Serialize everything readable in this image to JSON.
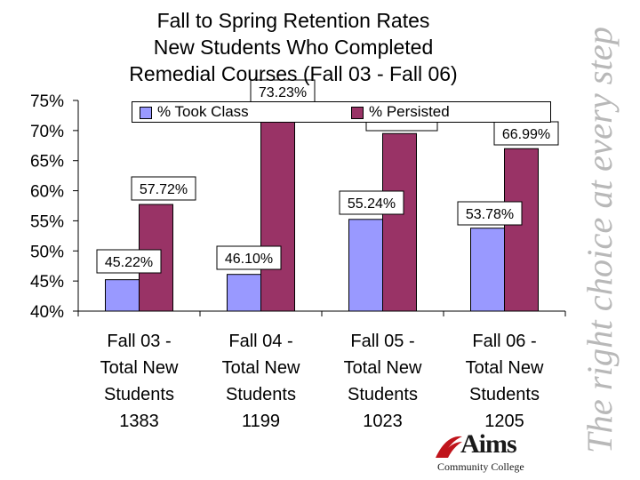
{
  "title_lines": [
    "Fall to Spring Retention Rates",
    "New Students Who Completed",
    "Remedial Courses (Fall 03 - Fall 06)"
  ],
  "tagline": "The right choice at every step",
  "logo": {
    "name": "Aims",
    "subtitle": "Community College"
  },
  "colors": {
    "took_class": "#9999ff",
    "persisted": "#993366",
    "axis": "#000000"
  },
  "chart_data": {
    "type": "bar",
    "categories": [
      [
        "Fall 03 -",
        "Total New",
        "Students",
        "1383"
      ],
      [
        "Fall 04 -",
        "Total New",
        "Students",
        "1199"
      ],
      [
        "Fall 05 -",
        "Total New",
        "Students",
        "1023"
      ],
      [
        "Fall 06 -",
        "Total New",
        "Students",
        "1205"
      ]
    ],
    "series": [
      {
        "name": "% Took Class",
        "values": [
          45.22,
          46.1,
          55.24,
          53.78
        ],
        "labels": [
          "45.22%",
          "46.10%",
          "55.24%",
          "53.78%"
        ]
      },
      {
        "name": "% Persisted",
        "values": [
          57.72,
          73.23,
          69.5,
          66.99
        ],
        "labels": [
          "57.72%",
          "73.23%",
          "",
          "66.99%"
        ]
      }
    ],
    "y_ticks": [
      "40%",
      "45%",
      "50%",
      "55%",
      "60%",
      "65%",
      "70%",
      "75%"
    ],
    "ylim": [
      40,
      75
    ],
    "legend_position": "top"
  }
}
